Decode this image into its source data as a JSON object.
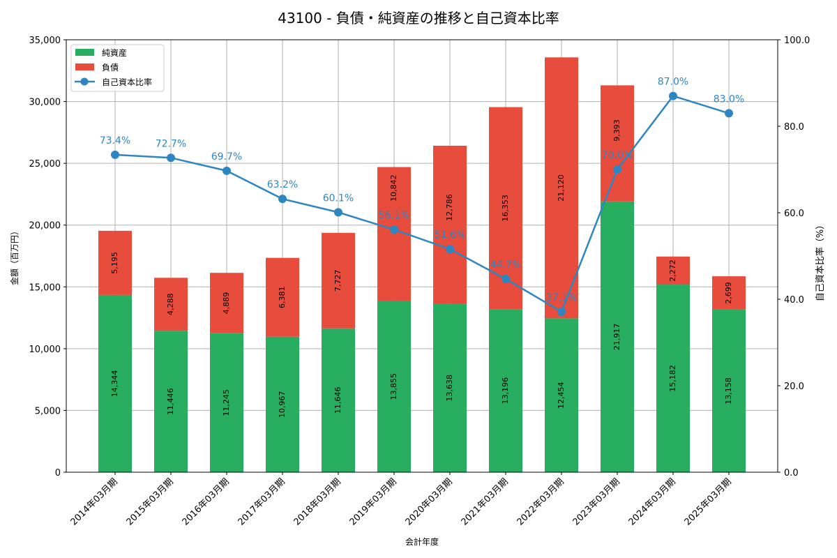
{
  "chart_data": {
    "type": "bar",
    "title": "43100 - 負債・純資産の推移と自己資本比率",
    "xlabel": "会計年度",
    "ylabel": "金額（百万円）",
    "y2label": "自己資本比率（%）",
    "ylim": [
      0,
      35000
    ],
    "y2lim": [
      0,
      100
    ],
    "yticks": [
      "0",
      "5,000",
      "10,000",
      "15,000",
      "20,000",
      "25,000",
      "30,000",
      "35,000"
    ],
    "y2ticks": [
      "0.0",
      "20.0",
      "40.0",
      "60.0",
      "80.0",
      "100.0"
    ],
    "grid": true,
    "legend_position": "top-left",
    "categories": [
      "2014年03月期",
      "2015年03月期",
      "2016年03月期",
      "2017年03月期",
      "2018年03月期",
      "2019年03月期",
      "2020年03月期",
      "2021年03月期",
      "2022年03月期",
      "2023年03月期",
      "2024年03月期",
      "2025年03月期"
    ],
    "series": [
      {
        "name": "純資産",
        "type": "bar",
        "color": "#27ae60",
        "values": [
          14344,
          11446,
          11245,
          10967,
          11646,
          13855,
          13638,
          13196,
          12454,
          21917,
          15182,
          13158
        ],
        "labels": [
          "14,344",
          "11,446",
          "11,245",
          "10,967",
          "11,646",
          "13,855",
          "13,638",
          "13,196",
          "12,454",
          "21,917",
          "15,182",
          "13,158"
        ]
      },
      {
        "name": "負債",
        "type": "bar",
        "color": "#e74c3c",
        "values": [
          5195,
          4288,
          4889,
          6381,
          7727,
          10842,
          12786,
          16353,
          21120,
          9393,
          2272,
          2699
        ],
        "labels": [
          "5,195",
          "4,288",
          "4,889",
          "6,381",
          "7,727",
          "10,842",
          "12,786",
          "16,353",
          "21,120",
          "9,393",
          "2,272",
          "2,699"
        ]
      },
      {
        "name": "自己資本比率",
        "type": "line",
        "color": "#2e86c1",
        "values": [
          73.4,
          72.7,
          69.7,
          63.2,
          60.1,
          56.1,
          51.6,
          44.7,
          37.1,
          70.0,
          87.0,
          83.0
        ],
        "labels": [
          "73.4%",
          "72.7%",
          "69.7%",
          "63.2%",
          "60.1%",
          "56.1%",
          "51.6%",
          "44.7%",
          "37.1%",
          "70.0%",
          "87.0%",
          "83.0%"
        ]
      }
    ]
  }
}
